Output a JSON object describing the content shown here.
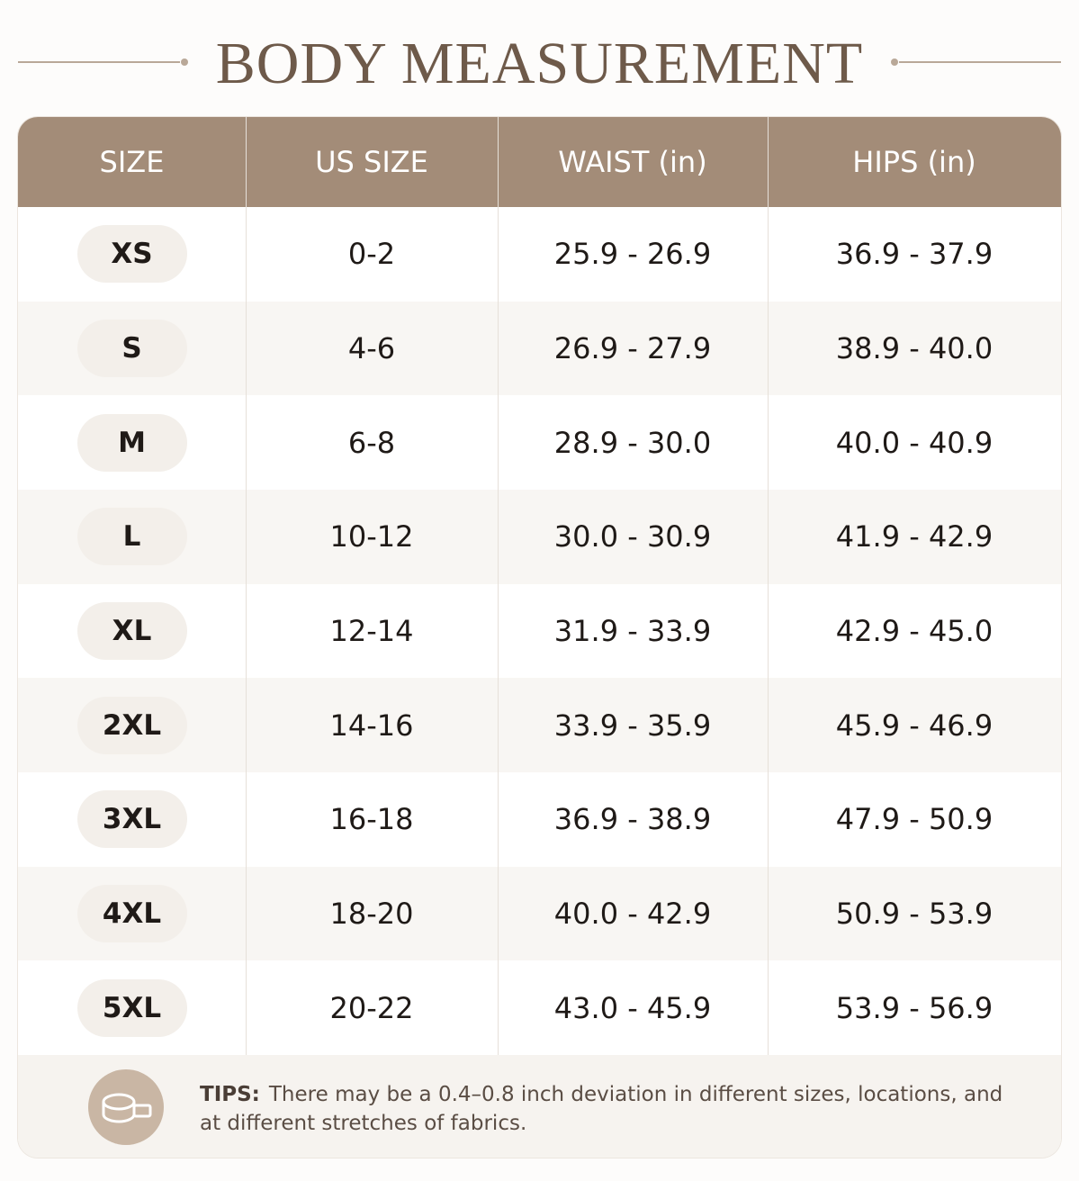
{
  "header": {
    "title": "BODY MEASUREMENT"
  },
  "table": {
    "columns": [
      "SIZE",
      "US SIZE",
      "WAIST (in)",
      "HIPS (in)"
    ],
    "rows": [
      [
        "XS",
        "0-2",
        "25.9 - 26.9",
        "36.9 - 37.9"
      ],
      [
        "S",
        "4-6",
        "26.9 - 27.9",
        "38.9 - 40.0"
      ],
      [
        "M",
        "6-8",
        "28.9 - 30.0",
        "40.0 - 40.9"
      ],
      [
        "L",
        "10-12",
        "30.0 - 30.9",
        "41.9 - 42.9"
      ],
      [
        "XL",
        "12-14",
        "31.9 - 33.9",
        "42.9 - 45.0"
      ],
      [
        "2XL",
        "14-16",
        "33.9 - 35.9",
        "45.9 - 46.9"
      ],
      [
        "3XL",
        "16-18",
        "36.9 - 38.9",
        "47.9 - 50.9"
      ],
      [
        "4XL",
        "18-20",
        "40.0 - 42.9",
        "50.9 - 53.9"
      ],
      [
        "5XL",
        "20-22",
        "43.0 - 45.9",
        "53.9 - 56.9"
      ]
    ]
  },
  "tips": {
    "label": "TIPS:",
    "text": "There may be a 0.4–0.8 inch deviation in different sizes, locations, and at different stretches of fabrics."
  }
}
